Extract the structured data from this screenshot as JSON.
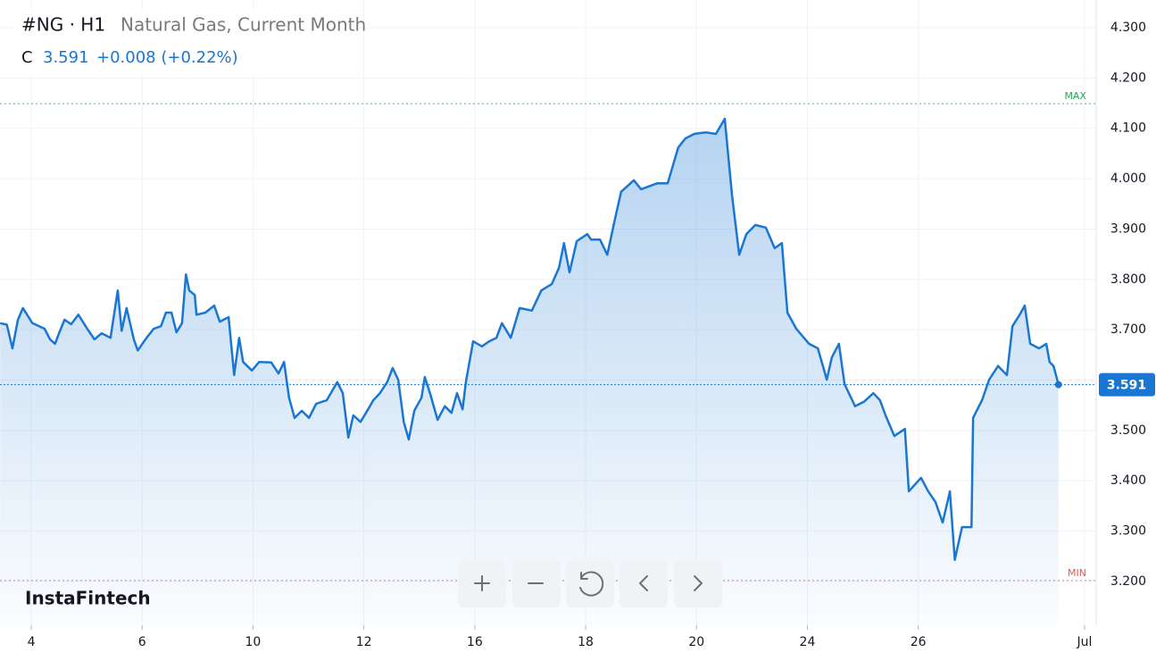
{
  "chart_data": {
    "type": "area",
    "symbol": "#NG · H1",
    "title": "Natural Gas, Current Month",
    "price_label": "C",
    "last": 3.591,
    "change": "+0.008 (+0.22%)",
    "brand": "InstaFintech",
    "color": "#1976d2",
    "grid": true,
    "x": [
      -0.56,
      -0.44,
      -0.34,
      -0.24,
      -0.15,
      0.02,
      0.24,
      0.34,
      0.43,
      0.5,
      0.6,
      0.72,
      0.85,
      1.01,
      1.14,
      1.27,
      1.43,
      1.56,
      1.63,
      1.72,
      1.85,
      1.92,
      2.08,
      2.21,
      2.34,
      2.43,
      2.53,
      2.62,
      2.72,
      2.79,
      2.85,
      2.95,
      2.98,
      3.14,
      3.3,
      3.4,
      3.56,
      3.66,
      3.75,
      3.82,
      3.98,
      4.11,
      4.33,
      4.46,
      4.56,
      4.65,
      4.75,
      4.88,
      5.01,
      5.14,
      5.33,
      5.52,
      5.62,
      5.72,
      5.81,
      5.94,
      6.07,
      6.17,
      6.29,
      6.42,
      6.52,
      6.62,
      6.72,
      6.81,
      6.91,
      7.04,
      7.1,
      7.2,
      7.33,
      7.46,
      7.58,
      7.68,
      7.78,
      7.84,
      7.97,
      8.13,
      8.26,
      8.39,
      8.49,
      8.65,
      8.81,
      9.03,
      9.2,
      9.39,
      9.52,
      9.61,
      9.71,
      9.84,
      10.03,
      10.1,
      10.26,
      10.39,
      10.52,
      10.64,
      10.87,
      11.0,
      11.29,
      11.48,
      11.67,
      11.8,
      11.96,
      12.16,
      12.35,
      12.51,
      12.64,
      12.77,
      12.9,
      13.06,
      13.25,
      13.41,
      13.54,
      13.64,
      13.8,
      14.03,
      14.19,
      14.35,
      14.44,
      14.57,
      14.67,
      14.86,
      15.02,
      15.19,
      15.31,
      15.41,
      15.57,
      15.76,
      15.83,
      16.05,
      16.18,
      16.31,
      16.44,
      16.57,
      16.66,
      16.79,
      16.96,
      16.99,
      17.15,
      17.28,
      17.44,
      17.6,
      17.7,
      17.83,
      17.92,
      18.02,
      18.18,
      18.31,
      18.37,
      18.44,
      18.53
    ],
    "values": [
      3.713,
      3.71,
      3.663,
      3.72,
      3.743,
      3.713,
      3.702,
      3.681,
      3.672,
      3.693,
      3.72,
      3.711,
      3.73,
      3.702,
      3.681,
      3.693,
      3.684,
      3.778,
      3.698,
      3.743,
      3.681,
      3.659,
      3.684,
      3.702,
      3.707,
      3.734,
      3.734,
      3.695,
      3.713,
      3.81,
      3.778,
      3.769,
      3.73,
      3.734,
      3.748,
      3.716,
      3.725,
      3.61,
      3.684,
      3.636,
      3.619,
      3.636,
      3.635,
      3.613,
      3.636,
      3.565,
      3.525,
      3.539,
      3.525,
      3.553,
      3.56,
      3.596,
      3.574,
      3.486,
      3.53,
      3.517,
      3.541,
      3.56,
      3.574,
      3.596,
      3.624,
      3.601,
      3.517,
      3.482,
      3.539,
      3.565,
      3.606,
      3.571,
      3.521,
      3.548,
      3.535,
      3.574,
      3.542,
      3.596,
      3.677,
      3.667,
      3.677,
      3.684,
      3.713,
      3.684,
      3.743,
      3.738,
      3.778,
      3.791,
      3.823,
      3.872,
      3.814,
      3.876,
      3.89,
      3.879,
      3.879,
      3.849,
      3.915,
      3.974,
      3.997,
      3.979,
      3.991,
      3.991,
      4.062,
      4.08,
      4.089,
      4.092,
      4.089,
      4.119,
      3.968,
      3.849,
      3.89,
      3.908,
      3.903,
      3.862,
      3.872,
      3.734,
      3.702,
      3.672,
      3.663,
      3.601,
      3.645,
      3.672,
      3.592,
      3.548,
      3.557,
      3.574,
      3.56,
      3.53,
      3.489,
      3.503,
      3.379,
      3.406,
      3.379,
      3.358,
      3.317,
      3.379,
      3.243,
      3.308,
      3.308,
      3.525,
      3.56,
      3.601,
      3.628,
      3.61,
      3.707,
      3.73,
      3.748,
      3.672,
      3.663,
      3.672,
      3.636,
      3.628,
      3.591
    ],
    "xlim": [
      -0.564,
      19.21
    ],
    "ylim": [
      3.113,
      4.355
    ],
    "xticks": [
      {
        "value": 0,
        "label": "4"
      },
      {
        "value": 2,
        "label": "6"
      },
      {
        "value": 4,
        "label": "10"
      },
      {
        "value": 6,
        "label": "12"
      },
      {
        "value": 8,
        "label": "16"
      },
      {
        "value": 10,
        "label": "18"
      },
      {
        "value": 12,
        "label": "20"
      },
      {
        "value": 14,
        "label": "24"
      },
      {
        "value": 16,
        "label": "26"
      },
      {
        "value": 19,
        "label": "Jul"
      }
    ],
    "yticks": [
      {
        "value": 3.2,
        "label": "3.200"
      },
      {
        "value": 3.3,
        "label": "3.300"
      },
      {
        "value": 3.4,
        "label": "3.400"
      },
      {
        "value": 3.5,
        "label": "3.500"
      },
      {
        "value": 3.6,
        "label": "3.600"
      },
      {
        "value": 3.7,
        "label": "3.700"
      },
      {
        "value": 3.8,
        "label": "3.800"
      },
      {
        "value": 3.9,
        "label": "3.900"
      },
      {
        "value": 4.0,
        "label": "4.000"
      },
      {
        "value": 4.1,
        "label": "4.100"
      },
      {
        "value": 4.2,
        "label": "4.200"
      },
      {
        "value": 4.3,
        "label": "4.300"
      }
    ],
    "levels": [
      {
        "label": "MAX",
        "value": 4.149,
        "color": "#2e9e5b"
      },
      {
        "label": "MIN",
        "value": 3.202,
        "color": "#e05a5a"
      }
    ]
  }
}
